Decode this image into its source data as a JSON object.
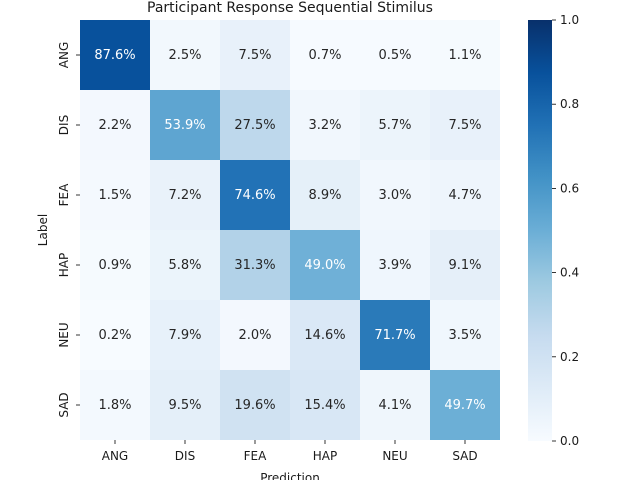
{
  "chart_data": {
    "type": "heatmap",
    "title": "Participant Response Sequential Stimilus",
    "xlabel": "Prediction",
    "ylabel": "Label",
    "x_categories": [
      "ANG",
      "DIS",
      "FEA",
      "HAP",
      "NEU",
      "SAD"
    ],
    "y_categories": [
      "ANG",
      "DIS",
      "FEA",
      "HAP",
      "NEU",
      "SAD"
    ],
    "values": [
      [
        0.876,
        0.025,
        0.075,
        0.007,
        0.005,
        0.011
      ],
      [
        0.022,
        0.539,
        0.275,
        0.032,
        0.057,
        0.075
      ],
      [
        0.015,
        0.072,
        0.746,
        0.089,
        0.03,
        0.047
      ],
      [
        0.009,
        0.058,
        0.313,
        0.49,
        0.039,
        0.091
      ],
      [
        0.002,
        0.079,
        0.02,
        0.146,
        0.717,
        0.035
      ],
      [
        0.018,
        0.095,
        0.196,
        0.154,
        0.041,
        0.497
      ]
    ],
    "cell_labels": [
      [
        "87.6%",
        "2.5%",
        "7.5%",
        "0.7%",
        "0.5%",
        "1.1%"
      ],
      [
        "2.2%",
        "53.9%",
        "27.5%",
        "3.2%",
        "5.7%",
        "7.5%"
      ],
      [
        "1.5%",
        "7.2%",
        "74.6%",
        "8.9%",
        "3.0%",
        "4.7%"
      ],
      [
        "0.9%",
        "5.8%",
        "31.3%",
        "49.0%",
        "3.9%",
        "9.1%"
      ],
      [
        "0.2%",
        "7.9%",
        "2.0%",
        "14.6%",
        "71.7%",
        "3.5%"
      ],
      [
        "1.8%",
        "9.5%",
        "19.6%",
        "15.4%",
        "4.1%",
        "49.7%"
      ]
    ],
    "colorbar": {
      "min": 0.0,
      "max": 1.0,
      "ticks": [
        0.0,
        0.2,
        0.4,
        0.6,
        0.8,
        1.0
      ],
      "tick_labels": [
        "0.0",
        "0.2",
        "0.4",
        "0.6",
        "0.8",
        "1.0"
      ],
      "colormap": "Blues"
    }
  }
}
